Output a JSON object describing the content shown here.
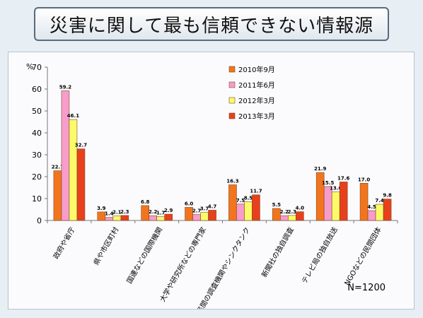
{
  "title": "災害に関して最も信頼できない情報源",
  "note": "N=1200",
  "chart_data": {
    "type": "bar",
    "ylabel": "%",
    "ylim": [
      0,
      70
    ],
    "yticks": [
      0,
      10,
      20,
      30,
      40,
      50,
      60,
      70
    ],
    "categories": [
      "政府や省庁",
      "県や市区町村",
      "国連などの国際機関",
      "大学や研究所などの専門家",
      "民間の調査機関やシンクタンク",
      "新聞社の独自調査",
      "テレビ局の独自放送",
      "NGOなどの民間団体"
    ],
    "series": [
      {
        "name": "2010年9月",
        "color": "#f2751e",
        "values": [
          22.7,
          3.9,
          6.8,
          6.0,
          16.3,
          5.5,
          21.9,
          17.0
        ]
      },
      {
        "name": "2011年6月",
        "color": "#f79ccb",
        "values": [
          59.2,
          1.4,
          2.2,
          2.7,
          7.5,
          2.2,
          15.5,
          4.5
        ]
      },
      {
        "name": "2012年3月",
        "color": "#fbfb6a",
        "values": [
          46.1,
          2.1,
          1.7,
          3.7,
          8.5,
          2.3,
          13.0,
          7.4
        ]
      },
      {
        "name": "2013年3月",
        "color": "#e8401c",
        "values": [
          32.7,
          2.3,
          2.9,
          4.7,
          11.7,
          4.0,
          17.6,
          9.8
        ]
      }
    ],
    "legend_position": "top-right",
    "grid": false
  }
}
